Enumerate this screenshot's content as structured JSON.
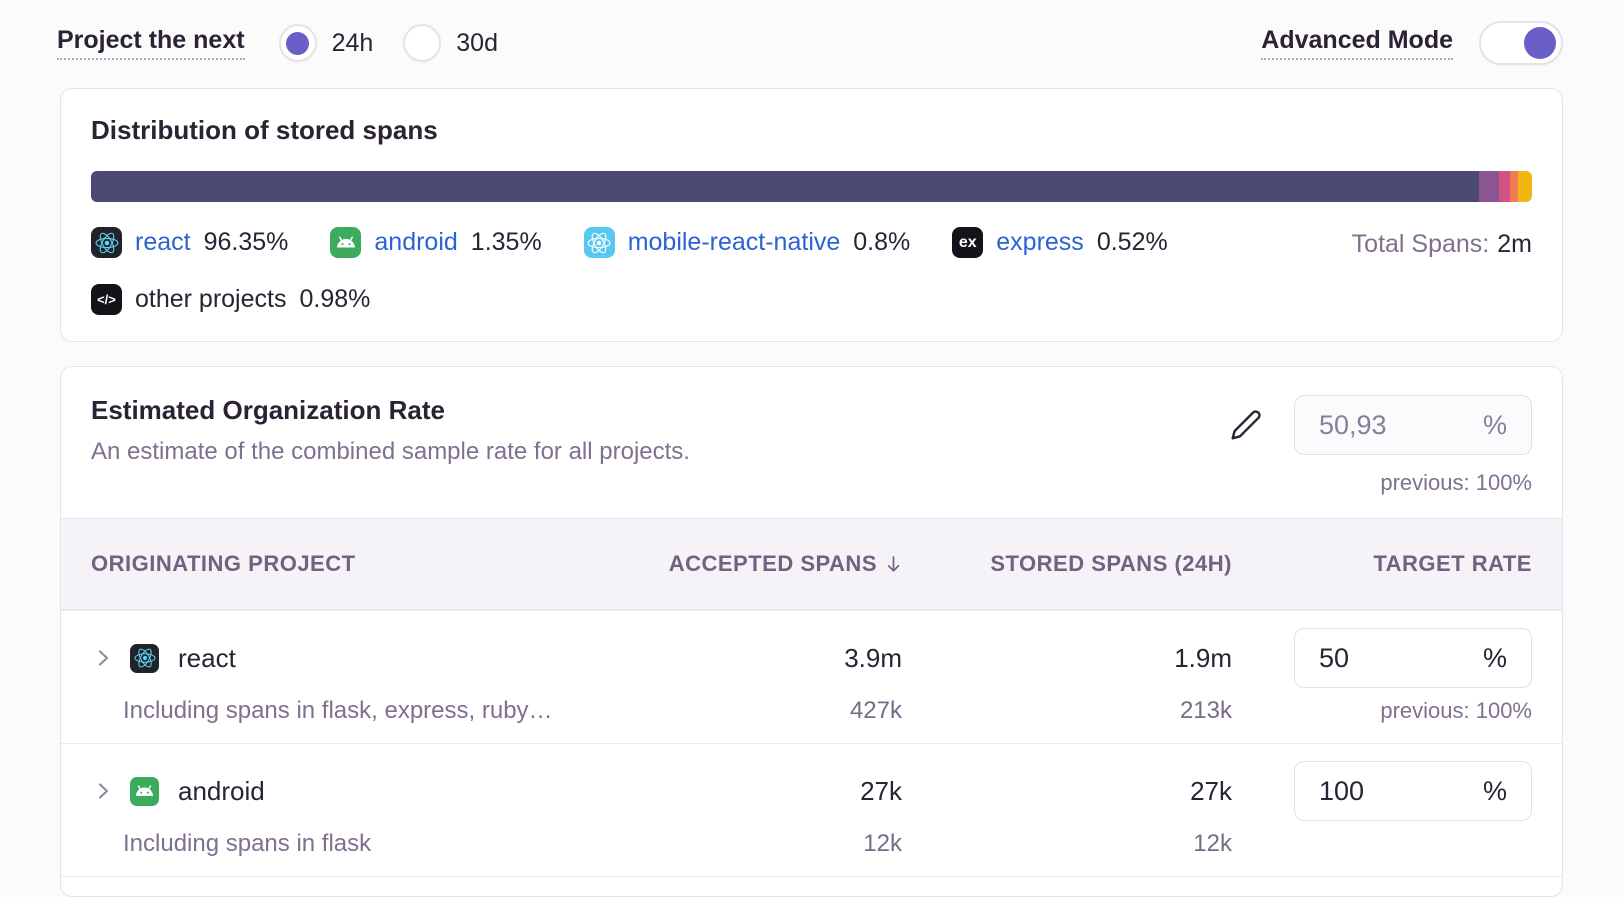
{
  "colors": {
    "accent": "#6a5ec7",
    "link": "#2c62d4",
    "text_dark": "#2b2233",
    "text_muted": "#80708f",
    "card_border": "#e6e3ea",
    "table_header_bg": "#f5f3f8"
  },
  "topbar": {
    "project_label": "Project the next",
    "range_options": [
      {
        "label": "24h",
        "selected": true
      },
      {
        "label": "30d",
        "selected": false
      }
    ],
    "advanced_mode_label": "Advanced Mode",
    "advanced_mode_on": true
  },
  "distribution": {
    "title": "Distribution of stored spans",
    "total_label": "Total Spans:",
    "total_value": "2m",
    "segments": [
      {
        "name": "react",
        "pct_label": "96.35%",
        "value": 96.35,
        "color": "#4a4a73",
        "icon": "react-icon",
        "is_link": true
      },
      {
        "name": "android",
        "pct_label": "1.35%",
        "value": 1.35,
        "color": "#8b5593",
        "icon": "android-icon",
        "is_link": true
      },
      {
        "name": "mobile-react-native",
        "pct_label": "0.8%",
        "value": 0.8,
        "color": "#d25283",
        "icon": "react-native-icon",
        "is_link": true
      },
      {
        "name": "express",
        "pct_label": "0.52%",
        "value": 0.52,
        "color": "#ef7a53",
        "icon": "express-icon",
        "is_link": true
      },
      {
        "name": "other projects",
        "pct_label": "0.98%",
        "value": 0.98,
        "color": "#f0b713",
        "icon": "code-icon",
        "is_link": false
      }
    ]
  },
  "org_rate": {
    "title": "Estimated Organization Rate",
    "subtitle": "An estimate of the combined sample rate for all projects.",
    "value": "50,93",
    "unit": "%",
    "previous": "previous: 100%"
  },
  "table": {
    "columns": {
      "project": "ORIGINATING PROJECT",
      "accepted": "ACCEPTED SPANS",
      "stored": "STORED SPANS (24H)",
      "target": "TARGET RATE"
    },
    "sorted_by": "accepted",
    "rows": [
      {
        "project": "react",
        "icon": "react-icon",
        "note": "Including spans in flask, express, ruby…",
        "accepted": "3.9m",
        "accepted_sub": "427k",
        "stored": "1.9m",
        "stored_sub": "213k",
        "rate": "50",
        "unit": "%",
        "previous": "previous: 100%"
      },
      {
        "project": "android",
        "icon": "android-icon",
        "note": "Including spans in flask",
        "accepted": "27k",
        "accepted_sub": "12k",
        "stored": "27k",
        "stored_sub": "12k",
        "rate": "100",
        "unit": "%",
        "previous": ""
      }
    ]
  }
}
